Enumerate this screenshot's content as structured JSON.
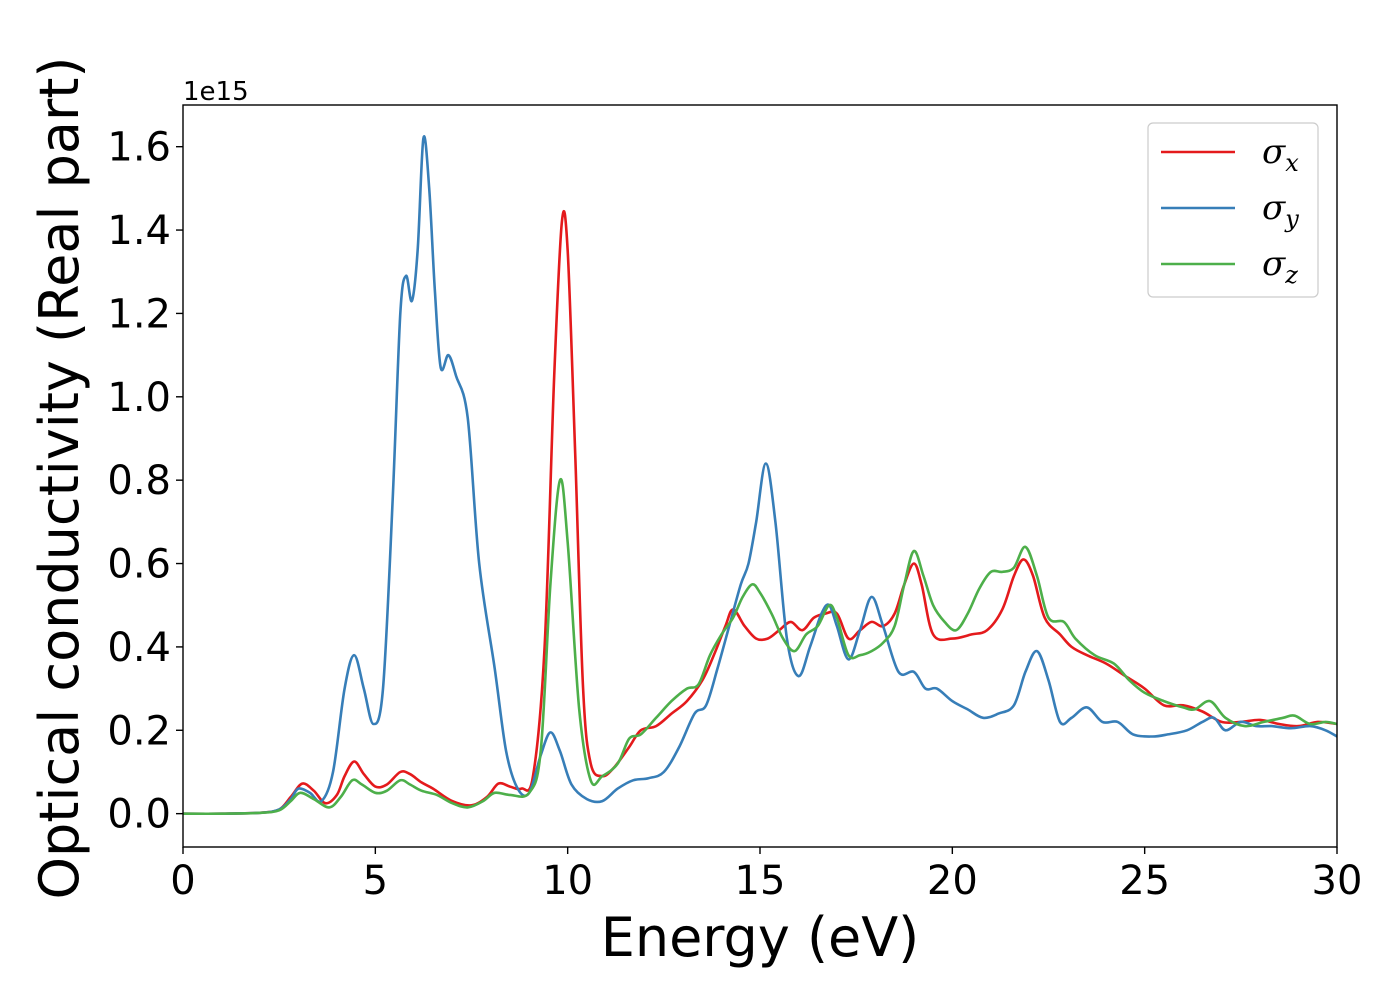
{
  "chart_data": {
    "type": "line",
    "xlabel": "Energy (eV)",
    "ylabel": "Optical conductivity (Real part)",
    "y_offset_label": "1e15",
    "y_scale": 1000000000000000.0,
    "xlim": [
      0,
      30
    ],
    "ylim": [
      -0.08,
      1.7
    ],
    "x_ticks": [
      0,
      5,
      10,
      15,
      20,
      25,
      30
    ],
    "x_tick_labels": [
      "0",
      "5",
      "10",
      "15",
      "20",
      "25",
      "30"
    ],
    "y_ticks": [
      0.0,
      0.2,
      0.4,
      0.6,
      0.8,
      1.0,
      1.2,
      1.4,
      1.6
    ],
    "y_tick_labels": [
      "0.0",
      "0.2",
      "0.4",
      "0.6",
      "0.8",
      "1.0",
      "1.2",
      "1.4",
      "1.6"
    ],
    "grid": false,
    "legend_position": "top-right",
    "series": [
      {
        "name": "σx",
        "legend_symbol": "σ",
        "legend_subscript": "x",
        "color": "#e41a1c",
        "points": [
          [
            0,
            0
          ],
          [
            1,
            0
          ],
          [
            2,
            0.002
          ],
          [
            2.5,
            0.01
          ],
          [
            2.8,
            0.04
          ],
          [
            3.1,
            0.072
          ],
          [
            3.4,
            0.055
          ],
          [
            3.7,
            0.025
          ],
          [
            4.0,
            0.045
          ],
          [
            4.2,
            0.09
          ],
          [
            4.45,
            0.125
          ],
          [
            4.7,
            0.095
          ],
          [
            5.0,
            0.065
          ],
          [
            5.3,
            0.07
          ],
          [
            5.65,
            0.1
          ],
          [
            5.9,
            0.095
          ],
          [
            6.2,
            0.075
          ],
          [
            6.5,
            0.06
          ],
          [
            7.0,
            0.03
          ],
          [
            7.5,
            0.02
          ],
          [
            7.9,
            0.04
          ],
          [
            8.2,
            0.072
          ],
          [
            8.5,
            0.065
          ],
          [
            8.8,
            0.06
          ],
          [
            9.1,
            0.09
          ],
          [
            9.4,
            0.4
          ],
          [
            9.65,
            1.05
          ],
          [
            9.85,
            1.42
          ],
          [
            10.0,
            1.35
          ],
          [
            10.2,
            0.85
          ],
          [
            10.4,
            0.3
          ],
          [
            10.6,
            0.12
          ],
          [
            10.9,
            0.09
          ],
          [
            11.2,
            0.11
          ],
          [
            11.6,
            0.16
          ],
          [
            11.9,
            0.2
          ],
          [
            12.3,
            0.21
          ],
          [
            12.7,
            0.24
          ],
          [
            13.1,
            0.27
          ],
          [
            13.5,
            0.32
          ],
          [
            13.8,
            0.38
          ],
          [
            14.1,
            0.45
          ],
          [
            14.3,
            0.49
          ],
          [
            14.6,
            0.45
          ],
          [
            14.9,
            0.42
          ],
          [
            15.2,
            0.42
          ],
          [
            15.5,
            0.44
          ],
          [
            15.8,
            0.46
          ],
          [
            16.1,
            0.44
          ],
          [
            16.4,
            0.47
          ],
          [
            16.7,
            0.48
          ],
          [
            17.0,
            0.48
          ],
          [
            17.3,
            0.42
          ],
          [
            17.6,
            0.44
          ],
          [
            17.9,
            0.46
          ],
          [
            18.2,
            0.45
          ],
          [
            18.5,
            0.48
          ],
          [
            18.75,
            0.55
          ],
          [
            19.0,
            0.6
          ],
          [
            19.2,
            0.55
          ],
          [
            19.5,
            0.43
          ],
          [
            20.0,
            0.42
          ],
          [
            20.5,
            0.43
          ],
          [
            20.9,
            0.44
          ],
          [
            21.3,
            0.49
          ],
          [
            21.6,
            0.57
          ],
          [
            21.85,
            0.61
          ],
          [
            22.1,
            0.57
          ],
          [
            22.4,
            0.47
          ],
          [
            22.8,
            0.43
          ],
          [
            23.1,
            0.4
          ],
          [
            23.5,
            0.38
          ],
          [
            24.0,
            0.36
          ],
          [
            24.5,
            0.33
          ],
          [
            25.0,
            0.3
          ],
          [
            25.5,
            0.26
          ],
          [
            26.0,
            0.26
          ],
          [
            26.5,
            0.245
          ],
          [
            27.0,
            0.22
          ],
          [
            27.5,
            0.22
          ],
          [
            28.0,
            0.225
          ],
          [
            28.5,
            0.215
          ],
          [
            29.0,
            0.21
          ],
          [
            29.5,
            0.22
          ],
          [
            30.0,
            0.215
          ]
        ]
      },
      {
        "name": "σy",
        "legend_symbol": "σ",
        "legend_subscript": "y",
        "color": "#377eb8",
        "points": [
          [
            0,
            0
          ],
          [
            1,
            0
          ],
          [
            2,
            0.002
          ],
          [
            2.5,
            0.01
          ],
          [
            2.8,
            0.035
          ],
          [
            3.0,
            0.06
          ],
          [
            3.3,
            0.05
          ],
          [
            3.6,
            0.03
          ],
          [
            3.9,
            0.1
          ],
          [
            4.2,
            0.3
          ],
          [
            4.45,
            0.38
          ],
          [
            4.7,
            0.3
          ],
          [
            4.95,
            0.215
          ],
          [
            5.2,
            0.3
          ],
          [
            5.45,
            0.75
          ],
          [
            5.65,
            1.2
          ],
          [
            5.8,
            1.29
          ],
          [
            5.95,
            1.23
          ],
          [
            6.1,
            1.35
          ],
          [
            6.25,
            1.62
          ],
          [
            6.4,
            1.5
          ],
          [
            6.55,
            1.25
          ],
          [
            6.7,
            1.07
          ],
          [
            6.9,
            1.1
          ],
          [
            7.1,
            1.05
          ],
          [
            7.4,
            0.95
          ],
          [
            7.7,
            0.6
          ],
          [
            8.1,
            0.35
          ],
          [
            8.4,
            0.15
          ],
          [
            8.7,
            0.06
          ],
          [
            9.0,
            0.05
          ],
          [
            9.3,
            0.14
          ],
          [
            9.55,
            0.195
          ],
          [
            9.8,
            0.15
          ],
          [
            10.1,
            0.07
          ],
          [
            10.5,
            0.035
          ],
          [
            10.9,
            0.03
          ],
          [
            11.3,
            0.06
          ],
          [
            11.7,
            0.08
          ],
          [
            12.1,
            0.085
          ],
          [
            12.5,
            0.1
          ],
          [
            12.9,
            0.16
          ],
          [
            13.3,
            0.24
          ],
          [
            13.6,
            0.26
          ],
          [
            13.9,
            0.35
          ],
          [
            14.2,
            0.45
          ],
          [
            14.5,
            0.55
          ],
          [
            14.7,
            0.6
          ],
          [
            14.9,
            0.7
          ],
          [
            15.15,
            0.84
          ],
          [
            15.4,
            0.7
          ],
          [
            15.7,
            0.42
          ],
          [
            16.0,
            0.33
          ],
          [
            16.3,
            0.4
          ],
          [
            16.6,
            0.48
          ],
          [
            16.8,
            0.5
          ],
          [
            17.0,
            0.45
          ],
          [
            17.3,
            0.37
          ],
          [
            17.6,
            0.44
          ],
          [
            17.9,
            0.52
          ],
          [
            18.2,
            0.45
          ],
          [
            18.6,
            0.34
          ],
          [
            19.0,
            0.34
          ],
          [
            19.3,
            0.3
          ],
          [
            19.6,
            0.3
          ],
          [
            20.0,
            0.27
          ],
          [
            20.4,
            0.25
          ],
          [
            20.8,
            0.23
          ],
          [
            21.2,
            0.24
          ],
          [
            21.6,
            0.26
          ],
          [
            21.9,
            0.34
          ],
          [
            22.2,
            0.39
          ],
          [
            22.5,
            0.32
          ],
          [
            22.8,
            0.22
          ],
          [
            23.1,
            0.23
          ],
          [
            23.5,
            0.255
          ],
          [
            23.9,
            0.22
          ],
          [
            24.3,
            0.22
          ],
          [
            24.7,
            0.19
          ],
          [
            25.2,
            0.185
          ],
          [
            25.6,
            0.19
          ],
          [
            26.1,
            0.2
          ],
          [
            26.5,
            0.22
          ],
          [
            26.8,
            0.23
          ],
          [
            27.1,
            0.2
          ],
          [
            27.5,
            0.22
          ],
          [
            27.9,
            0.21
          ],
          [
            28.3,
            0.21
          ],
          [
            28.8,
            0.205
          ],
          [
            29.3,
            0.21
          ],
          [
            29.7,
            0.2
          ],
          [
            30.0,
            0.185
          ]
        ]
      },
      {
        "name": "σz",
        "legend_symbol": "σ",
        "legend_subscript": "z",
        "color": "#4daf4a",
        "points": [
          [
            0,
            0
          ],
          [
            1,
            0
          ],
          [
            2,
            0.002
          ],
          [
            2.5,
            0.008
          ],
          [
            2.8,
            0.03
          ],
          [
            3.05,
            0.05
          ],
          [
            3.4,
            0.035
          ],
          [
            3.8,
            0.015
          ],
          [
            4.1,
            0.04
          ],
          [
            4.4,
            0.08
          ],
          [
            4.65,
            0.07
          ],
          [
            5.0,
            0.05
          ],
          [
            5.3,
            0.055
          ],
          [
            5.65,
            0.08
          ],
          [
            5.9,
            0.07
          ],
          [
            6.2,
            0.055
          ],
          [
            6.6,
            0.045
          ],
          [
            7.0,
            0.025
          ],
          [
            7.4,
            0.015
          ],
          [
            7.8,
            0.03
          ],
          [
            8.1,
            0.05
          ],
          [
            8.5,
            0.045
          ],
          [
            9.0,
            0.05
          ],
          [
            9.3,
            0.15
          ],
          [
            9.55,
            0.55
          ],
          [
            9.8,
            0.8
          ],
          [
            10.0,
            0.65
          ],
          [
            10.3,
            0.25
          ],
          [
            10.6,
            0.08
          ],
          [
            10.9,
            0.09
          ],
          [
            11.3,
            0.12
          ],
          [
            11.6,
            0.18
          ],
          [
            11.9,
            0.19
          ],
          [
            12.3,
            0.23
          ],
          [
            12.7,
            0.27
          ],
          [
            13.1,
            0.3
          ],
          [
            13.4,
            0.31
          ],
          [
            13.7,
            0.38
          ],
          [
            14.0,
            0.43
          ],
          [
            14.3,
            0.47
          ],
          [
            14.55,
            0.52
          ],
          [
            14.8,
            0.55
          ],
          [
            15.0,
            0.53
          ],
          [
            15.3,
            0.48
          ],
          [
            15.6,
            0.42
          ],
          [
            15.9,
            0.39
          ],
          [
            16.2,
            0.43
          ],
          [
            16.5,
            0.45
          ],
          [
            16.8,
            0.5
          ],
          [
            17.0,
            0.47
          ],
          [
            17.3,
            0.38
          ],
          [
            17.6,
            0.38
          ],
          [
            17.9,
            0.39
          ],
          [
            18.2,
            0.41
          ],
          [
            18.5,
            0.45
          ],
          [
            18.75,
            0.55
          ],
          [
            19.0,
            0.63
          ],
          [
            19.25,
            0.57
          ],
          [
            19.5,
            0.5
          ],
          [
            19.8,
            0.46
          ],
          [
            20.1,
            0.44
          ],
          [
            20.4,
            0.48
          ],
          [
            20.7,
            0.54
          ],
          [
            21.0,
            0.58
          ],
          [
            21.3,
            0.58
          ],
          [
            21.6,
            0.59
          ],
          [
            21.9,
            0.64
          ],
          [
            22.2,
            0.57
          ],
          [
            22.5,
            0.47
          ],
          [
            22.9,
            0.46
          ],
          [
            23.2,
            0.42
          ],
          [
            23.7,
            0.38
          ],
          [
            24.2,
            0.36
          ],
          [
            24.6,
            0.32
          ],
          [
            25.0,
            0.29
          ],
          [
            25.5,
            0.27
          ],
          [
            26.0,
            0.255
          ],
          [
            26.3,
            0.25
          ],
          [
            26.7,
            0.27
          ],
          [
            27.1,
            0.23
          ],
          [
            27.6,
            0.21
          ],
          [
            28.1,
            0.22
          ],
          [
            28.6,
            0.23
          ],
          [
            28.9,
            0.235
          ],
          [
            29.3,
            0.215
          ],
          [
            29.7,
            0.22
          ],
          [
            30.0,
            0.215
          ]
        ]
      }
    ]
  }
}
